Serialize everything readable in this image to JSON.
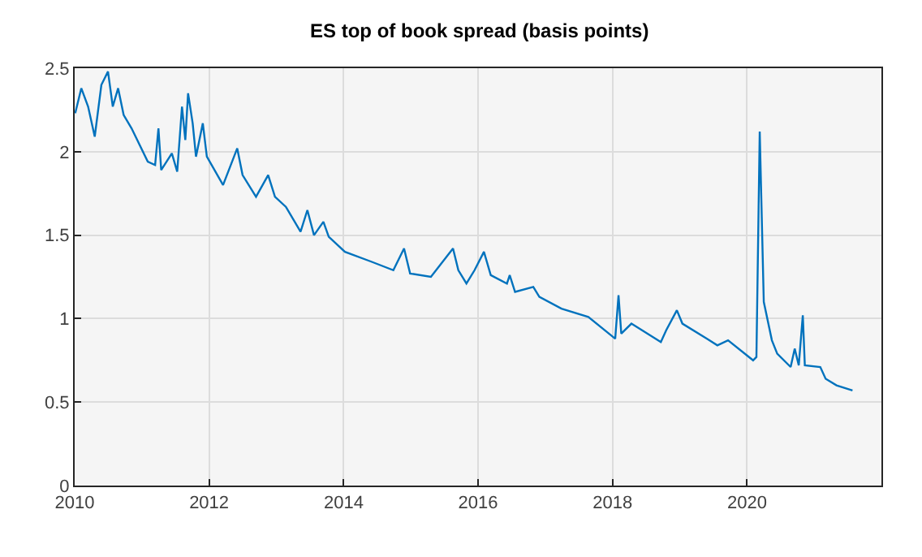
{
  "chart_data": {
    "type": "line",
    "title": "ES top of book spread (basis points)",
    "x": [
      "2010-01-04",
      "2010-02-06",
      "2010-03-15",
      "2010-04-20",
      "2010-05-26",
      "2010-07-01",
      "2010-07-27",
      "2010-08-25",
      "2010-09-24",
      "2010-11-06",
      "2011-02-02",
      "2011-03-14",
      "2011-04-01",
      "2011-04-16",
      "2011-06-13",
      "2011-07-12",
      "2011-08-07",
      "2011-08-25",
      "2011-09-09",
      "2011-10-04",
      "2011-10-22",
      "2011-11-28",
      "2011-12-20",
      "2012-03-17",
      "2012-06-02",
      "2012-07-01",
      "2012-09-12",
      "2012-11-17",
      "2012-12-24",
      "2013-02-21",
      "2013-05-12",
      "2013-06-18",
      "2013-07-24",
      "2013-09-13",
      "2013-10-12",
      "2014-01-08",
      "2014-06-03",
      "2014-09-28",
      "2014-11-25",
      "2014-12-28",
      "2015-04-20",
      "2015-08-18",
      "2015-09-16",
      "2015-10-30",
      "2015-12-13",
      "2016-02-02",
      "2016-03-10",
      "2016-06-06",
      "2016-06-21",
      "2016-07-20",
      "2016-10-27",
      "2016-11-29",
      "2017-03-29",
      "2017-08-22",
      "2018-01-15",
      "2018-02-02",
      "2018-02-17",
      "2018-04-13",
      "2018-09-20",
      "2018-10-19",
      "2018-12-16",
      "2019-01-15",
      "2019-05-27",
      "2019-07-24",
      "2019-09-20",
      "2020-02-03",
      "2020-02-21",
      "2020-03-10",
      "2020-04-01",
      "2020-05-15",
      "2020-06-13",
      "2020-08-25",
      "2020-09-16",
      "2020-10-08",
      "2020-10-30",
      "2020-11-10",
      "2021-02-02",
      "2021-03-03",
      "2021-05-01",
      "2021-07-27"
    ],
    "series": [
      {
        "color": "#0072bd",
        "values": [
          2.23,
          2.38,
          2.27,
          2.09,
          2.4,
          2.48,
          2.27,
          2.38,
          2.22,
          2.14,
          1.94,
          1.92,
          2.14,
          1.89,
          1.99,
          1.88,
          2.27,
          2.07,
          2.35,
          2.17,
          1.97,
          2.17,
          1.97,
          1.8,
          2.02,
          1.86,
          1.73,
          1.86,
          1.73,
          1.67,
          1.52,
          1.65,
          1.5,
          1.58,
          1.49,
          1.4,
          1.34,
          1.29,
          1.42,
          1.27,
          1.25,
          1.42,
          1.29,
          1.21,
          1.29,
          1.4,
          1.26,
          1.21,
          1.26,
          1.16,
          1.19,
          1.13,
          1.06,
          1.01,
          0.88,
          1.14,
          0.91,
          0.97,
          0.86,
          0.93,
          1.05,
          0.97,
          0.88,
          0.84,
          0.87,
          0.75,
          0.77,
          2.12,
          1.1,
          0.87,
          0.79,
          0.71,
          0.82,
          0.72,
          1.02,
          0.72,
          0.71,
          0.64,
          0.6,
          0.57
        ]
      }
    ],
    "xlim": [
      "2010-01-01",
      "2021-12-31"
    ],
    "xticks": [
      {
        "value": "2010-01-01",
        "label": "2010"
      },
      {
        "value": "2012-01-01",
        "label": "2012"
      },
      {
        "value": "2014-01-01",
        "label": "2014"
      },
      {
        "value": "2016-01-01",
        "label": "2016"
      },
      {
        "value": "2018-01-01",
        "label": "2018"
      },
      {
        "value": "2020-01-01",
        "label": "2020"
      }
    ],
    "ylim": [
      0,
      2.5
    ],
    "yticks": [
      0,
      0.5,
      1,
      1.5,
      2,
      2.5
    ],
    "grid": true,
    "marker": "none",
    "line_style": "solid"
  }
}
